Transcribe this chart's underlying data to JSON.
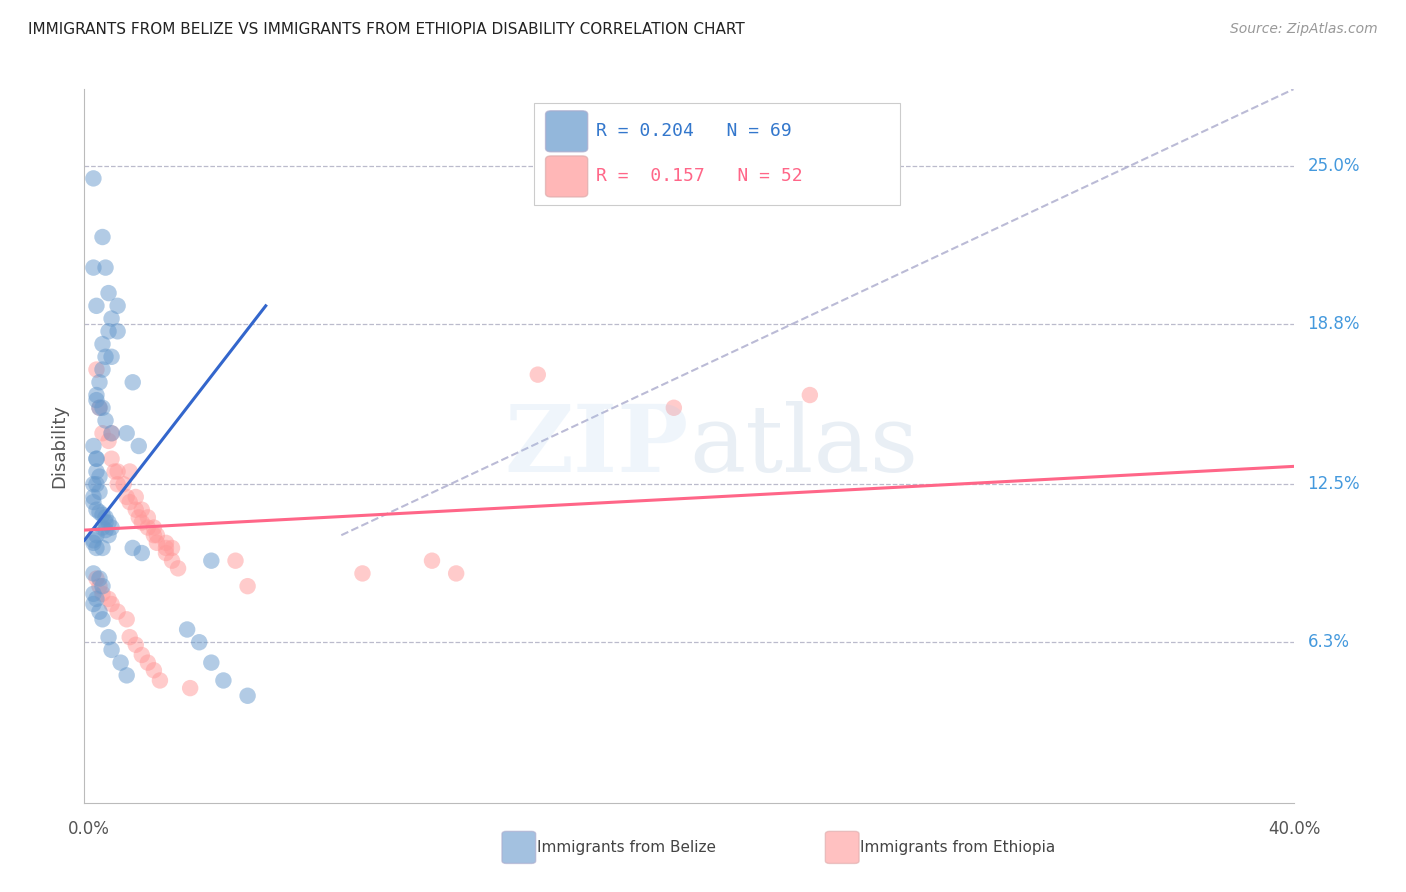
{
  "title": "IMMIGRANTS FROM BELIZE VS IMMIGRANTS FROM ETHIOPIA DISABILITY CORRELATION CHART",
  "source": "Source: ZipAtlas.com",
  "ylabel": "Disability",
  "ytick_labels": [
    "25.0%",
    "18.8%",
    "12.5%",
    "6.3%"
  ],
  "ytick_values": [
    0.25,
    0.188,
    0.125,
    0.063
  ],
  "xlim": [
    0.0,
    0.4
  ],
  "ylim": [
    0.0,
    0.28
  ],
  "watermark_zip": "ZIP",
  "watermark_atlas": "atlas",
  "legend_belize_r": "0.204",
  "legend_belize_n": "69",
  "legend_ethiopia_r": "0.157",
  "legend_ethiopia_n": "52",
  "belize_color": "#6699CC",
  "ethiopia_color": "#FF9999",
  "belize_line_color": "#3366CC",
  "ethiopia_line_color": "#FF6688",
  "dashed_line_color": "#AAAACC",
  "belize_scatter_x": [
    0.003,
    0.006,
    0.003,
    0.007,
    0.004,
    0.008,
    0.008,
    0.011,
    0.009,
    0.009,
    0.006,
    0.007,
    0.006,
    0.005,
    0.004,
    0.004,
    0.005,
    0.006,
    0.007,
    0.009,
    0.011,
    0.014,
    0.016,
    0.018,
    0.003,
    0.004,
    0.004,
    0.004,
    0.005,
    0.003,
    0.004,
    0.005,
    0.003,
    0.003,
    0.004,
    0.005,
    0.006,
    0.007,
    0.007,
    0.008,
    0.009,
    0.006,
    0.007,
    0.008,
    0.004,
    0.003,
    0.003,
    0.004,
    0.006,
    0.016,
    0.019,
    0.042,
    0.003,
    0.005,
    0.006,
    0.003,
    0.004,
    0.003,
    0.005,
    0.006,
    0.008,
    0.009,
    0.012,
    0.014,
    0.034,
    0.038,
    0.042,
    0.046,
    0.054
  ],
  "belize_scatter_y": [
    0.245,
    0.222,
    0.21,
    0.21,
    0.195,
    0.2,
    0.185,
    0.185,
    0.19,
    0.175,
    0.18,
    0.175,
    0.17,
    0.165,
    0.16,
    0.158,
    0.155,
    0.155,
    0.15,
    0.145,
    0.195,
    0.145,
    0.165,
    0.14,
    0.14,
    0.135,
    0.135,
    0.13,
    0.128,
    0.125,
    0.125,
    0.122,
    0.12,
    0.118,
    0.115,
    0.114,
    0.113,
    0.112,
    0.11,
    0.11,
    0.108,
    0.108,
    0.107,
    0.105,
    0.105,
    0.103,
    0.102,
    0.1,
    0.1,
    0.1,
    0.098,
    0.095,
    0.09,
    0.088,
    0.085,
    0.082,
    0.08,
    0.078,
    0.075,
    0.072,
    0.065,
    0.06,
    0.055,
    0.05,
    0.068,
    0.063,
    0.055,
    0.048,
    0.042
  ],
  "ethiopia_scatter_x": [
    0.004,
    0.005,
    0.006,
    0.008,
    0.009,
    0.009,
    0.01,
    0.011,
    0.011,
    0.013,
    0.014,
    0.015,
    0.015,
    0.017,
    0.017,
    0.018,
    0.019,
    0.019,
    0.021,
    0.021,
    0.023,
    0.023,
    0.024,
    0.024,
    0.027,
    0.027,
    0.027,
    0.029,
    0.029,
    0.031,
    0.004,
    0.005,
    0.006,
    0.008,
    0.009,
    0.011,
    0.014,
    0.015,
    0.017,
    0.019,
    0.021,
    0.023,
    0.025,
    0.15,
    0.24,
    0.195,
    0.05,
    0.054,
    0.092,
    0.115,
    0.123,
    0.035
  ],
  "ethiopia_scatter_y": [
    0.17,
    0.155,
    0.145,
    0.142,
    0.135,
    0.145,
    0.13,
    0.125,
    0.13,
    0.125,
    0.12,
    0.118,
    0.13,
    0.115,
    0.12,
    0.112,
    0.11,
    0.115,
    0.108,
    0.112,
    0.105,
    0.108,
    0.102,
    0.105,
    0.1,
    0.102,
    0.098,
    0.095,
    0.1,
    0.092,
    0.088,
    0.085,
    0.082,
    0.08,
    0.078,
    0.075,
    0.072,
    0.065,
    0.062,
    0.058,
    0.055,
    0.052,
    0.048,
    0.168,
    0.16,
    0.155,
    0.095,
    0.085,
    0.09,
    0.095,
    0.09,
    0.045
  ],
  "belize_trend_x": [
    0.0,
    0.06
  ],
  "belize_trend_y": [
    0.103,
    0.195
  ],
  "ethiopia_trend_x": [
    0.0,
    0.4
  ],
  "ethiopia_trend_y": [
    0.107,
    0.132
  ],
  "dashed_trend_x": [
    0.085,
    0.4
  ],
  "dashed_trend_y": [
    0.105,
    0.28
  ]
}
